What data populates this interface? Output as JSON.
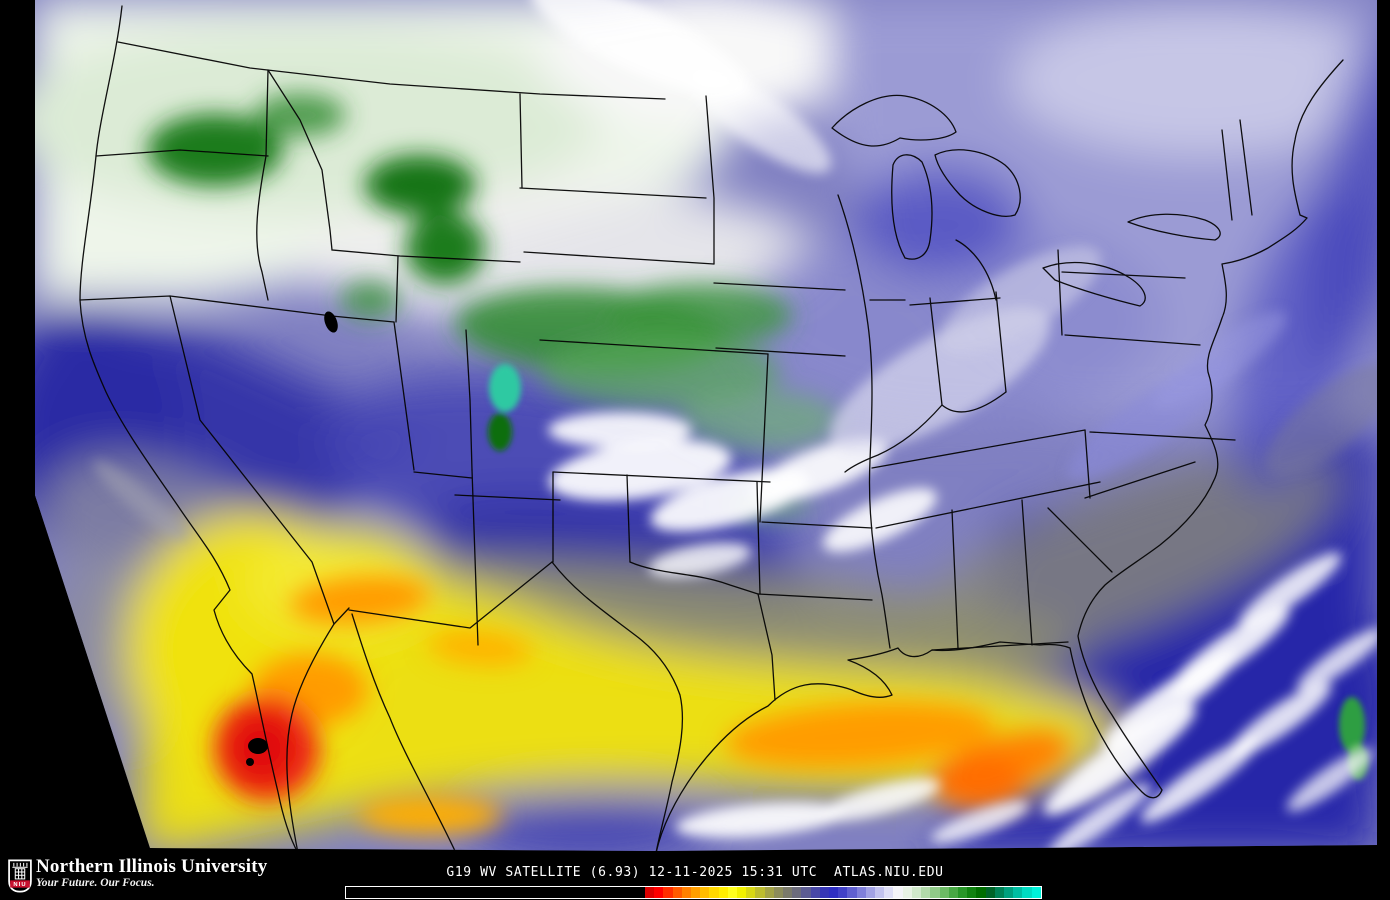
{
  "map": {
    "region_label": "conus-goes-water-vapor-scene",
    "palette": {
      "very_dry_red": "#e02612",
      "dry_orange": "#ff9c00",
      "dry_yellow": "#f0e20c",
      "olive_transition": "#8f8f6d",
      "midlevel_blue": "#3434a8",
      "humid_lavender": "#9a9ad2",
      "moist_white": "#f4f4f2",
      "very_moist_green": "#1c7c1e",
      "coldest_teal": "#2fc9a2",
      "border_line": "#050505",
      "scan_edge": "#000000"
    }
  },
  "footer": {
    "brand": {
      "shield_text": "NIU",
      "shield_red": "#c8102e",
      "name": "Northern Illinois University",
      "tagline": "Your Future. Our Focus."
    },
    "caption": "G19 WV SATELLITE (6.93) 12-11-2025 15:31 UTC  ATLAS.NIU.EDU",
    "caption_parts": {
      "product": "G19 WV SATELLITE (6.93)",
      "timestamp": "12-11-2025 15:31 UTC",
      "site": "ATLAS.NIU.EDU"
    },
    "colorbar": {
      "border_color": "#ffffff",
      "left_block_color": "#000000",
      "segments": [
        "#dc0000",
        "#ff0000",
        "#ff2e00",
        "#ff5a00",
        "#ff8000",
        "#ff9e00",
        "#ffbc00",
        "#ffd800",
        "#ffee00",
        "#ffff1e",
        "#f2f200",
        "#d8d814",
        "#bcbc2e",
        "#a2a246",
        "#8c8c5a",
        "#7a7a6a",
        "#6c6c7c",
        "#5c5c92",
        "#4848a6",
        "#3636b6",
        "#2e2ec2",
        "#4242c8",
        "#6060d0",
        "#8080da",
        "#a2a2e4",
        "#c2c2ee",
        "#dedef6",
        "#f4f4f8",
        "#e8f2e4",
        "#d0e8ca",
        "#b2daaa",
        "#90ca88",
        "#6cba64",
        "#48a844",
        "#289628",
        "#108210",
        "#006e00",
        "#006428",
        "#008256",
        "#00a07e",
        "#00bea2",
        "#00dcc2",
        "#00f2da"
      ]
    }
  }
}
